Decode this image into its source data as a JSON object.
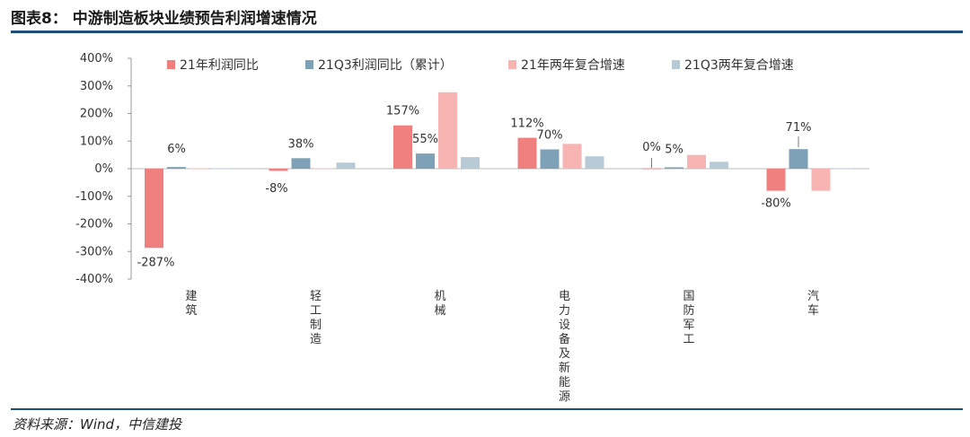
{
  "header": {
    "title": "图表8：  中游制造板块业绩预告利润增速情况"
  },
  "footer": {
    "source": "资料来源：Wind，中信建投"
  },
  "chart_data": {
    "type": "bar",
    "categories": [
      "建筑",
      "轻工制造",
      "机械",
      "电力设备及新能源",
      "国防军工",
      "汽车"
    ],
    "series": [
      {
        "name": "21年利润同比",
        "color": "#f07f80",
        "values": [
          -287,
          -8,
          157,
          112,
          0,
          -80
        ]
      },
      {
        "name": "21Q3利润同比（累计）",
        "color": "#7fa1b7",
        "values": [
          6,
          38,
          55,
          70,
          5,
          71
        ]
      },
      {
        "name": "21年两年复合增速",
        "color": "#f8b3b3",
        "values": [
          -2,
          2,
          277,
          90,
          50,
          -80
        ]
      },
      {
        "name": "21Q3两年复合增速",
        "color": "#b8cad6",
        "values": [
          -2,
          22,
          42,
          45,
          25,
          1
        ]
      }
    ],
    "data_labels": [
      {
        "category": 0,
        "series": 0,
        "text": "-287%"
      },
      {
        "category": 0,
        "series": 1,
        "text": "6%"
      },
      {
        "category": 1,
        "series": 0,
        "text": "-8%"
      },
      {
        "category": 1,
        "series": 1,
        "text": "38%"
      },
      {
        "category": 2,
        "series": 0,
        "text": "157%"
      },
      {
        "category": 2,
        "series": 1,
        "text": "55%"
      },
      {
        "category": 3,
        "series": 0,
        "text": "112%"
      },
      {
        "category": 3,
        "series": 1,
        "text": "70%"
      },
      {
        "category": 4,
        "series": 0,
        "text": "0%"
      },
      {
        "category": 4,
        "series": 1,
        "text": "5%"
      },
      {
        "category": 5,
        "series": 0,
        "text": "-80%"
      },
      {
        "category": 5,
        "series": 1,
        "text": "71%"
      }
    ],
    "y_ticks": [
      "400%",
      "300%",
      "200%",
      "100%",
      "0%",
      "-100%",
      "-200%",
      "-300%",
      "-400%"
    ],
    "ylim": [
      -400,
      400
    ],
    "grid": false,
    "legend_position": "top"
  }
}
